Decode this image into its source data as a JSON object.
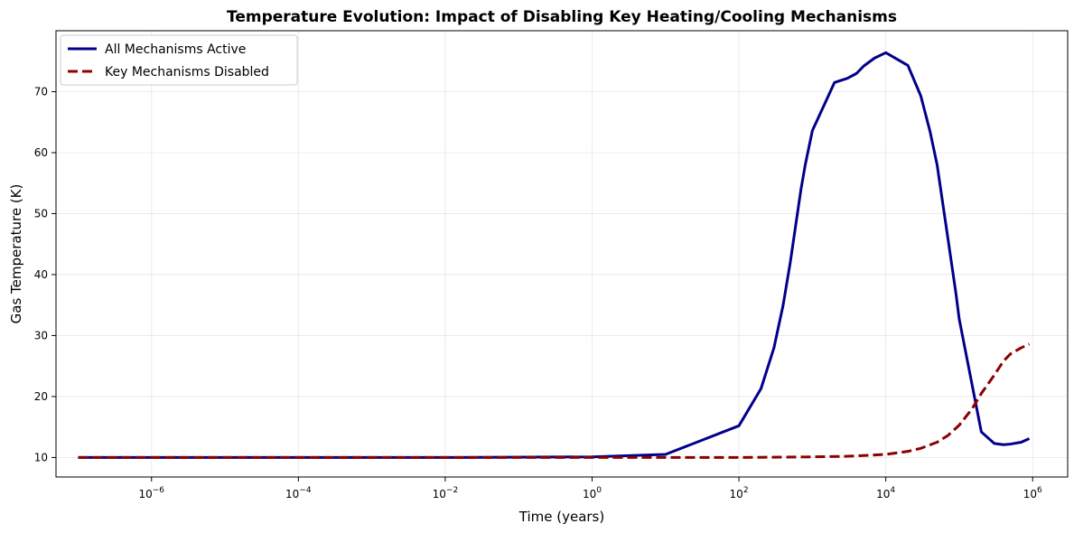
{
  "chart_data": {
    "type": "line",
    "title": "Temperature Evolution: Impact of Disabling Key Heating/Cooling Mechanisms",
    "xlabel": "Time (years)",
    "ylabel": "Gas Temperature (K)",
    "xscale": "log",
    "xlim": [
      5e-08,
      3000000.0
    ],
    "ylim": [
      6.8,
      80
    ],
    "x_ticks": [
      {
        "value": 1e-06,
        "base": "10",
        "exp": "−6"
      },
      {
        "value": 0.0001,
        "base": "10",
        "exp": "−4"
      },
      {
        "value": 0.01,
        "base": "10",
        "exp": "−2"
      },
      {
        "value": 1,
        "base": "10",
        "exp": "0"
      },
      {
        "value": 100,
        "base": "10",
        "exp": "2"
      },
      {
        "value": 10000,
        "base": "10",
        "exp": "4"
      },
      {
        "value": 1000000,
        "base": "10",
        "exp": "6"
      }
    ],
    "y_ticks": [
      10,
      20,
      30,
      40,
      50,
      60,
      70
    ],
    "grid": true,
    "legend_position": "top-left",
    "series": [
      {
        "name": "All Mechanisms Active",
        "color": "#00008b",
        "dash": "solid",
        "points": [
          [
            1e-07,
            10
          ],
          [
            1e-06,
            10
          ],
          [
            0.0001,
            10
          ],
          [
            0.01,
            10
          ],
          [
            1,
            10.1
          ],
          [
            10,
            10.5
          ],
          [
            100,
            15.2
          ],
          [
            200,
            21.3
          ],
          [
            300,
            28
          ],
          [
            400,
            35
          ],
          [
            500,
            42
          ],
          [
            700,
            54
          ],
          [
            800,
            58
          ],
          [
            1000,
            63.6
          ],
          [
            2000,
            71.5
          ],
          [
            3000,
            72.2
          ],
          [
            4000,
            73
          ],
          [
            5000,
            74.2
          ],
          [
            7000,
            75.5
          ],
          [
            10000,
            76.4
          ],
          [
            20000,
            74.3
          ],
          [
            30000,
            69.3
          ],
          [
            40000,
            63.5
          ],
          [
            50000,
            58
          ],
          [
            70000,
            46
          ],
          [
            90000,
            37
          ],
          [
            100000,
            32.7
          ],
          [
            200000,
            14.2
          ],
          [
            300000,
            12.3
          ],
          [
            400000,
            12.1
          ],
          [
            500000,
            12.2
          ],
          [
            700000,
            12.5
          ],
          [
            900000,
            13.1
          ]
        ]
      },
      {
        "name": "Key Mechanisms Disabled",
        "color": "#8b0000",
        "dash": "dashed",
        "points": [
          [
            1e-07,
            10
          ],
          [
            0.0001,
            10
          ],
          [
            1,
            10
          ],
          [
            100,
            10
          ],
          [
            1000,
            10.1
          ],
          [
            3000,
            10.2
          ],
          [
            10000,
            10.5
          ],
          [
            20000,
            11
          ],
          [
            30000,
            11.5
          ],
          [
            50000,
            12.5
          ],
          [
            70000,
            13.6
          ],
          [
            100000,
            15.3
          ],
          [
            150000,
            18
          ],
          [
            200000,
            20.5
          ],
          [
            300000,
            23.5
          ],
          [
            400000,
            25.8
          ],
          [
            500000,
            27
          ],
          [
            700000,
            28
          ],
          [
            900000,
            28.6
          ]
        ]
      }
    ]
  }
}
